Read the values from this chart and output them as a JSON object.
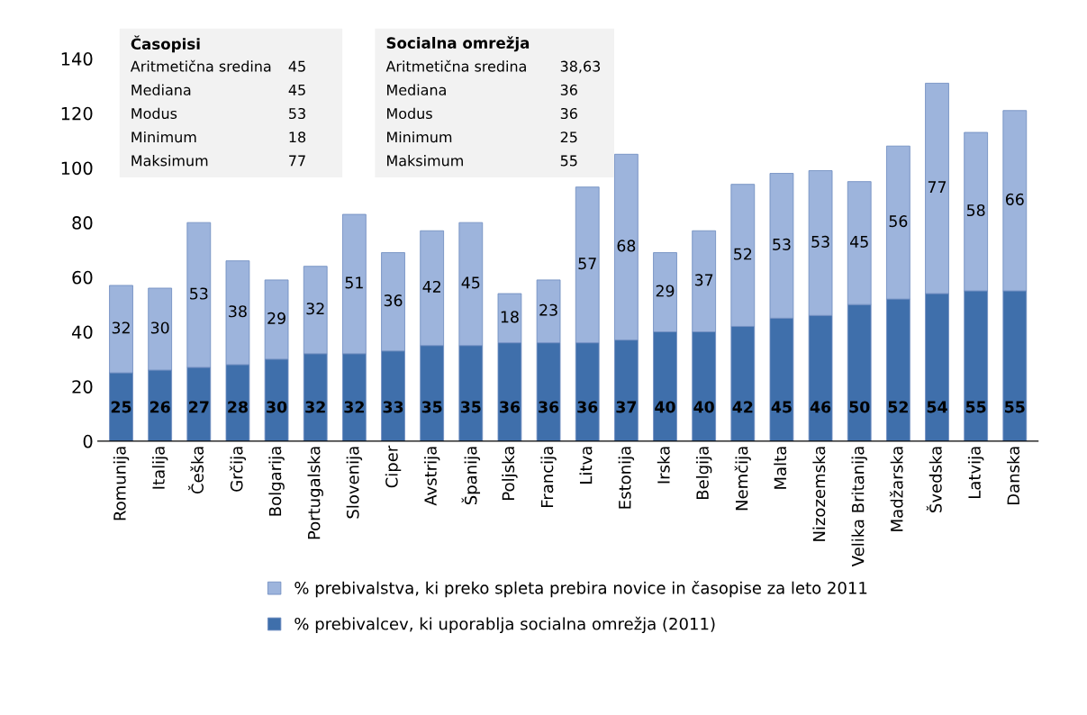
{
  "chart_data": {
    "type": "bar",
    "stacked": true,
    "categories": [
      "Romunija",
      "Italija",
      "Češka",
      "Grčija",
      "Bolgarija",
      "Portugalska",
      "Slovenija",
      "Ciper",
      "Avstrija",
      "Španija",
      "Poljska",
      "Francija",
      "Litva",
      "Estonija",
      "Irska",
      "Belgija",
      "Nemčija",
      "Malta",
      "Nizozemska",
      "Velika Britanija",
      "Madžarska",
      "Švedska",
      "Latvija",
      "Danska"
    ],
    "series": [
      {
        "name": "% prebivalcev, ki uporablja socialna omrežja (2011)",
        "color": "#3f6fab",
        "values": [
          25,
          26,
          27,
          28,
          30,
          32,
          32,
          33,
          35,
          35,
          36,
          36,
          36,
          37,
          40,
          40,
          42,
          45,
          46,
          50,
          52,
          54,
          55,
          55
        ]
      },
      {
        "name": "% prebivalstva, ki preko spleta prebira novice in časopise za leto 2011",
        "color": "#9db4dc",
        "values": [
          32,
          30,
          53,
          38,
          29,
          32,
          51,
          36,
          42,
          45,
          18,
          23,
          57,
          68,
          29,
          37,
          52,
          53,
          53,
          45,
          56,
          77,
          58,
          66
        ]
      }
    ],
    "ylim": [
      0,
      140
    ],
    "yticks": [
      0,
      20,
      40,
      60,
      80,
      100,
      120,
      140
    ],
    "grid": false,
    "data_labels": true,
    "legend": "bottom",
    "annotations": [
      "Časopisi\nAritmetična sredina 45\nMediana 45\nModus 53\nMinimum 18\nMaksimum 77",
      "Socialna omrežja\nAritmetična sredina 38,63\nMediana 36\nModus 36\nMinimum 25\nMaksimum 55"
    ]
  }
}
